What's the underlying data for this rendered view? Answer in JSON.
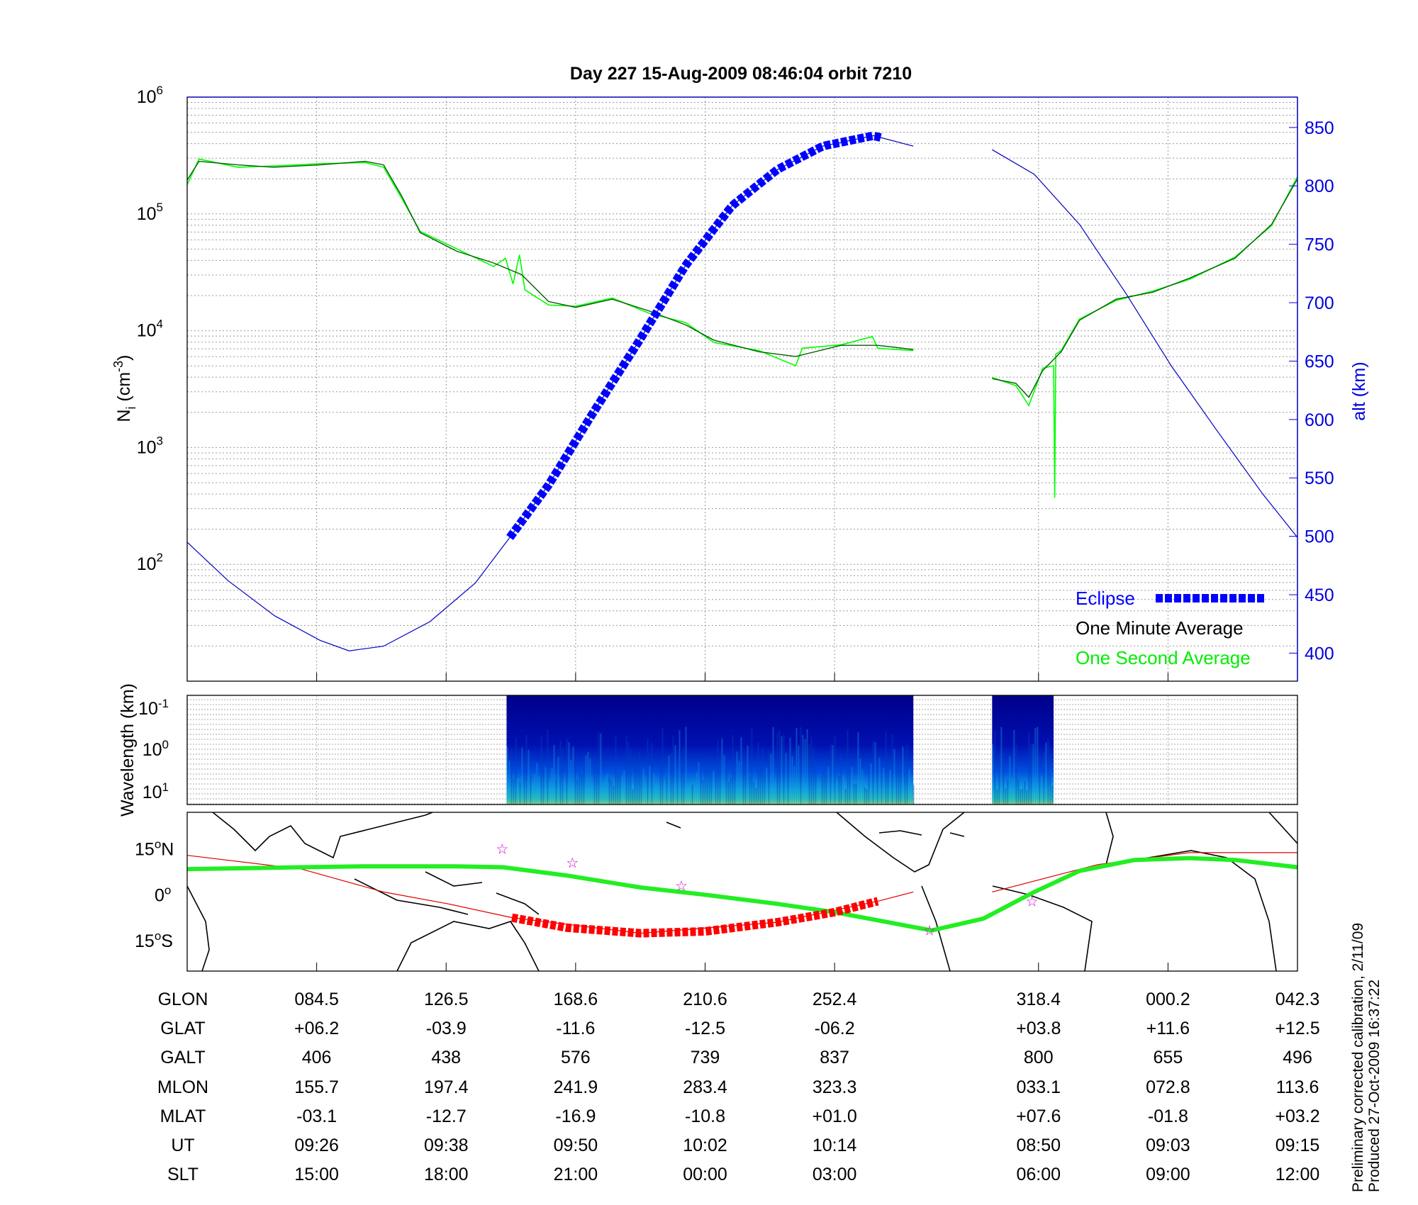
{
  "title": "Day 227  15-Aug-2009 08:46:04   orbit 7210",
  "side_note": [
    "Preliminary corrected calibration, 2/11/09",
    "Produced 27-Oct-2009 16:37:22"
  ],
  "colors": {
    "eclipse": "#0000ff",
    "alt": "#0000c0",
    "one_minute": "#006000",
    "one_second": "#00ff00",
    "ground_track": "#22ee22",
    "eclipse_track": "#ff0000",
    "stars": "#cc00cc"
  },
  "chart_data": [
    {
      "type": "line",
      "title": "Day 227  15-Aug-2009 08:46:04   orbit 7210",
      "xlabel": "",
      "xunit": "minutes from plot start",
      "xlim": [
        0,
        102.9
      ],
      "ylabel": "N",
      "ylabel_sub": "i",
      "ylabel_unit": " (cm",
      "ylabel_unit_sup": "-3",
      "ylabel_unit_end": ")",
      "yscale": "log",
      "ylim_log10": [
        1,
        6
      ],
      "yticks": [
        {
          "base": "10",
          "exp": "2",
          "v": 2
        },
        {
          "base": "10",
          "exp": "3",
          "v": 3
        },
        {
          "base": "10",
          "exp": "4",
          "v": 4
        },
        {
          "base": "10",
          "exp": "5",
          "v": 5
        },
        {
          "base": "10",
          "exp": "6",
          "v": 6
        }
      ],
      "y2label": "alt (km)",
      "y2lim": [
        376,
        876
      ],
      "y2ticks": [
        "400",
        "450",
        "500",
        "550",
        "600",
        "650",
        "700",
        "750",
        "800",
        "850"
      ],
      "grid": true,
      "legend_position": "bottom-right",
      "legend": [
        "Eclipse",
        "One Minute Average",
        "One Second Average"
      ],
      "series": [
        {
          "name": "alt",
          "axis": "right",
          "segments": [
            [
              [
                0,
                495
              ],
              [
                3.8,
                462
              ],
              [
                8.1,
                432
              ],
              [
                12.3,
                411
              ],
              [
                15,
                402
              ],
              [
                18.2,
                406
              ],
              [
                22.5,
                427
              ],
              [
                26.7,
                460
              ],
              [
                29.9,
                499
              ],
              [
                33.5,
                544
              ],
              [
                37.7,
                607
              ],
              [
                42,
                669
              ],
              [
                46.2,
                732
              ],
              [
                50.5,
                783
              ],
              [
                54.7,
                814
              ],
              [
                58.9,
                834
              ],
              [
                63.6,
                843
              ],
              [
                67.3,
                834
              ]
            ],
            [
              [
                74.6,
                831
              ],
              [
                78.5,
                810
              ],
              [
                82.7,
                767
              ],
              [
                87,
                708
              ],
              [
                91.2,
                646
              ],
              [
                95.4,
                591
              ],
              [
                99.7,
                536
              ],
              [
                102.9,
                499
              ]
            ]
          ]
        },
        {
          "name": "Eclipse",
          "axis": "right",
          "x_range": [
            29.9,
            64.3
          ]
        },
        {
          "name": "One Minute Average",
          "axis": "left",
          "log10_segments": [
            [
              [
                0,
                5.29
              ],
              [
                1.1,
                5.45
              ],
              [
                4.7,
                5.42
              ],
              [
                8,
                5.4
              ],
              [
                12.3,
                5.42
              ],
              [
                16.5,
                5.45
              ],
              [
                18.2,
                5.42
              ],
              [
                19.9,
                5.15
              ],
              [
                21.6,
                4.84
              ],
              [
                25,
                4.68
              ],
              [
                28.4,
                4.58
              ],
              [
                31,
                4.48
              ],
              [
                33.5,
                4.25
              ],
              [
                36,
                4.2
              ],
              [
                39.4,
                4.27
              ],
              [
                42.8,
                4.17
              ],
              [
                46.2,
                4.05
              ],
              [
                48.8,
                3.92
              ],
              [
                53,
                3.82
              ],
              [
                56.4,
                3.78
              ],
              [
                60.6,
                3.875
              ],
              [
                64,
                3.875
              ],
              [
                67.3,
                3.84
              ]
            ],
            [
              [
                74.6,
                3.59
              ],
              [
                76.8,
                3.55
              ],
              [
                78,
                3.43
              ],
              [
                79.3,
                3.66
              ],
              [
                81,
                3.82
              ],
              [
                82.7,
                4.09
              ],
              [
                86.1,
                4.27
              ],
              [
                89.5,
                4.33
              ],
              [
                92.9,
                4.45
              ],
              [
                97.1,
                4.62
              ],
              [
                100.5,
                4.91
              ],
              [
                102.9,
                5.3
              ]
            ]
          ]
        },
        {
          "name": "One Second Average",
          "axis": "left",
          "log10_segments": [
            [
              [
                0,
                5.25
              ],
              [
                1.1,
                5.47
              ],
              [
                4.7,
                5.4
              ],
              [
                8,
                5.41
              ],
              [
                12.3,
                5.43
              ],
              [
                16.5,
                5.44
              ],
              [
                18.2,
                5.4
              ],
              [
                19.9,
                5.13
              ],
              [
                21.6,
                4.85
              ],
              [
                25,
                4.7
              ],
              [
                28.4,
                4.55
              ],
              [
                29.5,
                4.62
              ],
              [
                30.2,
                4.4
              ],
              [
                30.8,
                4.65
              ],
              [
                31.3,
                4.35
              ],
              [
                33.5,
                4.22
              ],
              [
                36,
                4.21
              ],
              [
                39.4,
                4.28
              ],
              [
                42.8,
                4.15
              ],
              [
                46.2,
                4.07
              ],
              [
                48.8,
                3.9
              ],
              [
                53,
                3.83
              ],
              [
                56.4,
                3.7
              ],
              [
                57,
                3.85
              ],
              [
                60.6,
                3.88
              ],
              [
                63.5,
                3.95
              ],
              [
                64,
                3.85
              ],
              [
                67.3,
                3.83
              ]
            ],
            [
              [
                74.6,
                3.6
              ],
              [
                76.8,
                3.53
              ],
              [
                78,
                3.36
              ],
              [
                79.3,
                3.68
              ],
              [
                80.3,
                3.7
              ],
              [
                80.4,
                2.57
              ],
              [
                80.5,
                3.8
              ],
              [
                81,
                3.83
              ],
              [
                82.7,
                4.1
              ],
              [
                86.1,
                4.26
              ],
              [
                89.5,
                4.34
              ],
              [
                92.9,
                4.44
              ],
              [
                97.1,
                4.63
              ],
              [
                100.5,
                4.9
              ],
              [
                102.9,
                5.32
              ]
            ]
          ]
        }
      ]
    },
    {
      "type": "heatmap",
      "ylabel": "Wavelength (km)",
      "yticks": [
        {
          "base": "10",
          "exp": "-1"
        },
        {
          "base": "10",
          "exp": "0"
        },
        {
          "base": "10",
          "exp": "1"
        }
      ],
      "data_ranges_minutes": [
        [
          29.6,
          67.3
        ],
        [
          74.6,
          80.3
        ]
      ],
      "colormap": "jet"
    },
    {
      "type": "line",
      "kind": "map",
      "yticks": [
        {
          "label": "15",
          "deg": "o",
          "hem": "N",
          "lat": 15
        },
        {
          "label": "0",
          "deg": "o",
          "hem": "",
          "lat": 0
        },
        {
          "label": "15",
          "deg": "o",
          "hem": "S",
          "lat": -15
        }
      ],
      "ylim": [
        -25,
        27
      ],
      "ground_track": [
        [
          0,
          8.4
        ],
        [
          10.6,
          9
        ],
        [
          16.5,
          9.3
        ],
        [
          25,
          9.3
        ],
        [
          29.3,
          9
        ],
        [
          35.2,
          6.3
        ],
        [
          42,
          2.4
        ],
        [
          48,
          0
        ],
        [
          54.7,
          -3
        ],
        [
          60,
          -5.7
        ],
        [
          69,
          -11.7
        ],
        [
          73.8,
          -7.8
        ],
        [
          78.5,
          0.9
        ],
        [
          82.7,
          7.8
        ],
        [
          87.8,
          11.4
        ],
        [
          92.9,
          12
        ],
        [
          97.1,
          11.4
        ],
        [
          102.9,
          9
        ]
      ],
      "eclipse_track": [
        [
          30.1,
          -7.5
        ],
        [
          35.2,
          -10.8
        ],
        [
          42,
          -12.6
        ],
        [
          48,
          -12
        ],
        [
          54.7,
          -9
        ],
        [
          60,
          -5.7
        ],
        [
          64,
          -2.1
        ]
      ],
      "magnetic_equator": [
        [
          [
            0,
            12.9
          ],
          [
            10.6,
            8.4
          ],
          [
            18.2,
            0.9
          ],
          [
            24.2,
            -3
          ],
          [
            30.1,
            -7.5
          ],
          [
            42,
            -12.6
          ],
          [
            54.7,
            -9
          ],
          [
            64,
            -2.1
          ],
          [
            67.3,
            0.9
          ]
        ],
        [
          [
            74.6,
            0.9
          ],
          [
            84.4,
            9.9
          ],
          [
            92.9,
            13.8
          ],
          [
            102.9,
            13.8
          ]
        ]
      ],
      "stars": [
        [
          29.2,
          15
        ],
        [
          35.7,
          10.5
        ],
        [
          45.8,
          3
        ],
        [
          68.8,
          -11.7
        ],
        [
          78.3,
          -2.1
        ]
      ]
    }
  ],
  "table": {
    "tick_minutes": [
      12,
      24,
      36,
      48,
      60,
      78.9,
      90.9,
      102.9
    ],
    "rows": [
      {
        "label": "GLON",
        "values": [
          "084.5",
          "126.5",
          "168.6",
          "210.6",
          "252.4",
          "318.4",
          "000.2",
          "042.3"
        ]
      },
      {
        "label": "GLAT",
        "values": [
          "+06.2",
          "-03.9",
          "-11.6",
          "-12.5",
          "-06.2",
          "+03.8",
          "+11.6",
          "+12.5"
        ]
      },
      {
        "label": "GALT",
        "values": [
          "406",
          "438",
          "576",
          "739",
          "837",
          "800",
          "655",
          "496"
        ]
      },
      {
        "label": "MLON",
        "values": [
          "155.7",
          "197.4",
          "241.9",
          "283.4",
          "323.3",
          "033.1",
          "072.8",
          "113.6"
        ]
      },
      {
        "label": "MLAT",
        "values": [
          "-03.1",
          "-12.7",
          "-16.9",
          "-10.8",
          "+01.0",
          "+07.6",
          "-01.8",
          "+03.2"
        ]
      },
      {
        "label": "UT",
        "values": [
          "09:26",
          "09:38",
          "09:50",
          "10:02",
          "10:14",
          "08:50",
          "09:03",
          "09:15"
        ]
      },
      {
        "label": "SLT",
        "values": [
          "15:00",
          "18:00",
          "21:00",
          "00:00",
          "03:00",
          "06:00",
          "09:00",
          "12:00"
        ]
      }
    ]
  }
}
